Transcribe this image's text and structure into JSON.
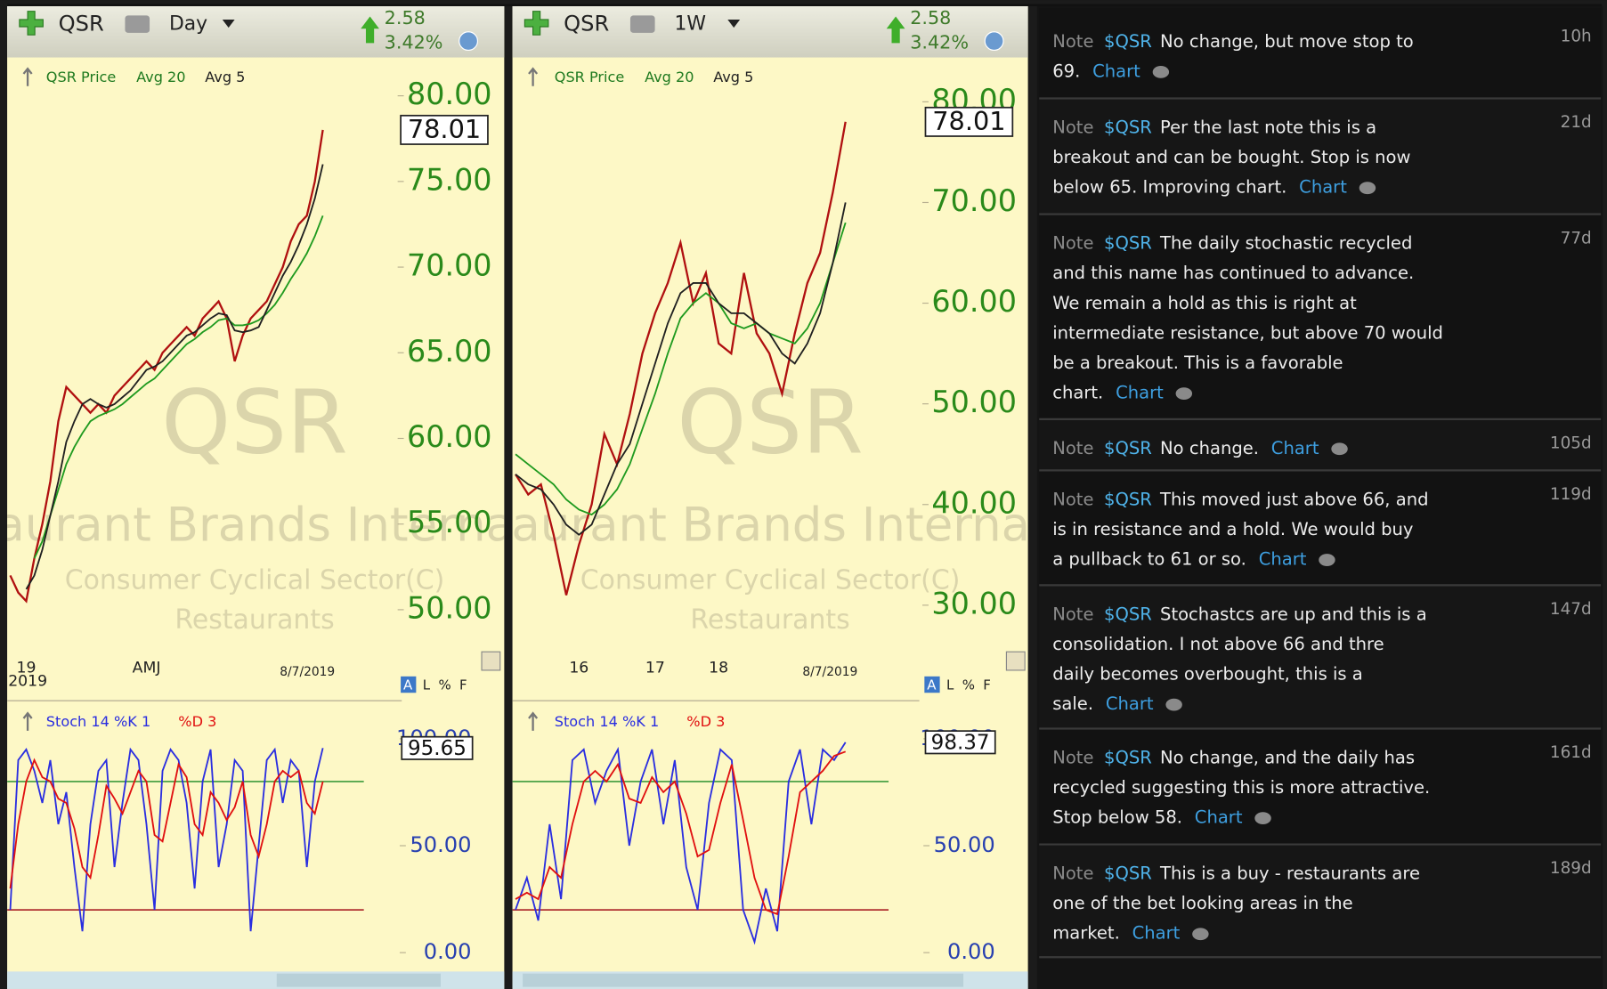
{
  "panels": [
    {
      "symbol": "QSR",
      "interval": "Day",
      "change": "2.58",
      "change_pct": "3.42%",
      "scale_buttons": [
        "A",
        "L",
        "%",
        "F"
      ],
      "x_annotations": [
        "8/7/2019",
        "2019"
      ]
    },
    {
      "symbol": "QSR",
      "interval": "1W",
      "change": "2.58",
      "change_pct": "3.42%",
      "scale_buttons": [
        "A",
        "L",
        "%",
        "F"
      ],
      "x_annotations": [
        "8/7/2019"
      ]
    }
  ],
  "chart_data": [
    {
      "type": "line",
      "watermark": [
        "QSR",
        "Restaurant Brands International",
        "Consumer Cyclical Sector(C)",
        "Restaurants"
      ],
      "categories": [
        null,
        null,
        "19",
        null,
        null,
        null,
        null,
        null,
        null,
        null,
        null,
        null,
        null,
        null,
        null,
        null,
        null,
        "AMJ",
        null,
        null,
        null,
        null,
        null,
        null,
        null,
        null,
        null,
        null,
        null,
        null,
        null,
        null,
        null,
        null,
        null,
        null,
        null,
        null,
        null,
        null
      ],
      "series": [
        {
          "name": "QSR Price",
          "color": "#b01010",
          "values": [
            52,
            51,
            50.5,
            53,
            55,
            57.5,
            61,
            63,
            62.5,
            62,
            61.5,
            62,
            61.5,
            62.5,
            63,
            63.5,
            64,
            64.5,
            64,
            65,
            65.5,
            66,
            66.5,
            66,
            67,
            67.5,
            68,
            67,
            64.5,
            66,
            67,
            67.5,
            68,
            69,
            70,
            71.5,
            72.5,
            73,
            75,
            78.01
          ]
        },
        {
          "name": "Avg 20",
          "color": "#1f9a1f",
          "values": [
            null,
            null,
            null,
            53,
            54,
            55.5,
            57,
            58.5,
            59.5,
            60.3,
            61,
            61.3,
            61.5,
            61.7,
            62,
            62.4,
            62.8,
            63.2,
            63.5,
            64,
            64.5,
            65,
            65.5,
            65.8,
            66.2,
            66.5,
            66.9,
            67,
            66.6,
            66.6,
            66.7,
            66.9,
            67.3,
            67.8,
            68.5,
            69.3,
            70,
            70.8,
            71.8,
            73
          ]
        },
        {
          "name": "Avg 5",
          "color": "#202020",
          "values": [
            null,
            null,
            51.2,
            52,
            53.5,
            55.5,
            57.5,
            59.8,
            61,
            62,
            62.3,
            62,
            61.8,
            62,
            62.4,
            62.8,
            63.4,
            64,
            64.2,
            64.5,
            65,
            65.5,
            66,
            66.2,
            66.6,
            67,
            67.3,
            67.2,
            66.3,
            66.2,
            66.3,
            66.5,
            67.5,
            68.5,
            69.5,
            70.3,
            71.3,
            72.5,
            74,
            76
          ]
        }
      ],
      "ylim": [
        48.5,
        82
      ],
      "yticks": [
        {
          "value": 80,
          "label": "80.00"
        },
        {
          "value": 75,
          "label": "75.00"
        },
        {
          "value": 70,
          "label": "70.00"
        },
        {
          "value": 65,
          "label": "65.00"
        },
        {
          "value": 60,
          "label": "60.00"
        },
        {
          "value": 55,
          "label": "55.00"
        },
        {
          "value": 50,
          "label": "50.00"
        }
      ]
    },
    {
      "type": "line",
      "series": [
        {
          "name": "Stoch 14 %K 1",
          "color": "#2a2ee0",
          "values": [
            20,
            90,
            95,
            85,
            70,
            90,
            60,
            75,
            40,
            10,
            60,
            85,
            90,
            40,
            70,
            95,
            90,
            60,
            20,
            85,
            95,
            90,
            70,
            30,
            80,
            95,
            40,
            60,
            90,
            85,
            10,
            50,
            90,
            95,
            70,
            90,
            85,
            40,
            80,
            95.65
          ]
        },
        {
          "name": "%D 3",
          "color": "#e01010",
          "values": [
            30,
            60,
            80,
            90,
            82,
            80,
            72,
            70,
            58,
            40,
            35,
            55,
            78,
            72,
            65,
            75,
            85,
            80,
            55,
            52,
            70,
            88,
            82,
            60,
            55,
            75,
            70,
            62,
            68,
            80,
            55,
            45,
            60,
            80,
            85,
            82,
            85,
            70,
            65,
            80
          ]
        }
      ],
      "hlines": [
        {
          "value": 80,
          "color": "#3c9a3c"
        },
        {
          "value": 20,
          "color": "#b03030"
        }
      ],
      "ylim": [
        -5,
        110
      ],
      "yticks": [
        {
          "value": 100,
          "label": "100.00"
        },
        {
          "value": 50,
          "label": "50.00"
        },
        {
          "value": 0,
          "label": "0.00"
        }
      ]
    },
    {
      "type": "line",
      "watermark": [
        "QSR",
        "Restaurant Brands International",
        "Consumer Cyclical Sector(C)",
        "Restaurants"
      ],
      "categories": [
        null,
        null,
        null,
        null,
        null,
        "16",
        null,
        null,
        null,
        null,
        null,
        "17",
        null,
        null,
        null,
        null,
        "18",
        null,
        null,
        null,
        null,
        null,
        null,
        null,
        null,
        null,
        null
      ],
      "series": [
        {
          "name": "QSR Price",
          "color": "#b01010",
          "values": [
            43,
            41,
            42,
            37,
            31,
            36,
            40,
            47,
            44,
            49,
            55,
            59,
            62,
            66,
            60,
            63,
            56,
            55,
            63,
            57,
            55,
            51,
            57,
            62,
            65,
            71,
            78.01
          ]
        },
        {
          "name": "Avg 20",
          "color": "#1f9a1f",
          "values": [
            45,
            44,
            43,
            42,
            40.5,
            39.5,
            39,
            40,
            41.5,
            44,
            47.5,
            51,
            55,
            58.5,
            60,
            61,
            60,
            58,
            57.5,
            58,
            57,
            56.5,
            56,
            57.5,
            60,
            64,
            68
          ]
        },
        {
          "name": "Avg 5",
          "color": "#202020",
          "values": [
            43,
            42,
            41.5,
            40,
            38,
            37,
            38,
            41,
            44,
            46,
            50,
            54,
            58,
            61,
            62,
            62,
            60,
            59,
            59,
            58,
            57,
            55,
            54,
            56,
            59,
            64,
            70
          ]
        }
      ],
      "ylim": [
        27,
        84
      ],
      "yticks": [
        {
          "value": 80,
          "label": "80.00"
        },
        {
          "value": 70,
          "label": "70.00"
        },
        {
          "value": 60,
          "label": "60.00"
        },
        {
          "value": 50,
          "label": "50.00"
        },
        {
          "value": 40,
          "label": "40.00"
        },
        {
          "value": 30,
          "label": "30.00"
        }
      ]
    },
    {
      "type": "line",
      "series": [
        {
          "name": "Stoch 14 %K 1",
          "color": "#2a2ee0",
          "values": [
            20,
            35,
            15,
            60,
            25,
            90,
            95,
            70,
            85,
            95,
            50,
            80,
            95,
            60,
            90,
            40,
            20,
            70,
            95,
            90,
            20,
            5,
            30,
            10,
            80,
            95,
            60,
            95,
            90,
            98.37
          ]
        },
        {
          "name": "%D 3",
          "color": "#e01010",
          "values": [
            25,
            28,
            25,
            40,
            35,
            60,
            80,
            85,
            80,
            88,
            72,
            70,
            82,
            75,
            80,
            65,
            45,
            48,
            70,
            88,
            62,
            35,
            20,
            18,
            45,
            75,
            80,
            85,
            92,
            94
          ]
        }
      ],
      "hlines": [
        {
          "value": 80,
          "color": "#3c9a3c"
        },
        {
          "value": 20,
          "color": "#b03030"
        }
      ],
      "ylim": [
        -5,
        110
      ],
      "yticks": [
        {
          "value": 100,
          "label": "100.00"
        },
        {
          "value": 50,
          "label": "50.00"
        },
        {
          "value": 0,
          "label": "0.00"
        }
      ]
    }
  ],
  "notes": [
    {
      "label": "Note",
      "ticker": "$QSR",
      "lines": [
        "No change, but move stop to",
        "69."
      ],
      "link": "Chart",
      "age": "10h"
    },
    {
      "label": "Note",
      "ticker": "$QSR",
      "lines": [
        "Per the last note this is a",
        "breakout and can be bought. Stop is now",
        "below 65. Improving chart."
      ],
      "link": "Chart",
      "age": "21d"
    },
    {
      "label": "Note",
      "ticker": "$QSR",
      "lines": [
        "The daily stochastic recycled",
        "and this name has continued to advance.",
        "We remain a hold as this is right at",
        "intermediate resistance, but above 70 would",
        "be a breakout. This is a favorable",
        "chart."
      ],
      "link": "Chart",
      "age": "77d"
    },
    {
      "label": "Note",
      "ticker": "$QSR",
      "lines": [
        "No change."
      ],
      "link": "Chart",
      "age": "105d"
    },
    {
      "label": "Note",
      "ticker": "$QSR",
      "lines": [
        "This moved just above 66, and",
        "is in resistance and a hold.  We would buy",
        "a pullback to 61 or so."
      ],
      "link": "Chart",
      "age": "119d"
    },
    {
      "label": "Note",
      "ticker": "$QSR",
      "lines": [
        "Stochastcs are up and this is a",
        "consolidation. I not above 66 and thre",
        "daily becomes overbought, this is a",
        "sale."
      ],
      "link": "Chart",
      "age": "147d"
    },
    {
      "label": "Note",
      "ticker": "$QSR",
      "lines": [
        "No change, and the daily has",
        "recycled suggesting this is more attractive.",
        "Stop below 58."
      ],
      "link": "Chart",
      "age": "161d"
    },
    {
      "label": "Note",
      "ticker": "$QSR",
      "lines": [
        "This is a buy - restaurants are",
        "one of the bet looking areas in the",
        "market."
      ],
      "link": "Chart",
      "age": "189d"
    }
  ]
}
